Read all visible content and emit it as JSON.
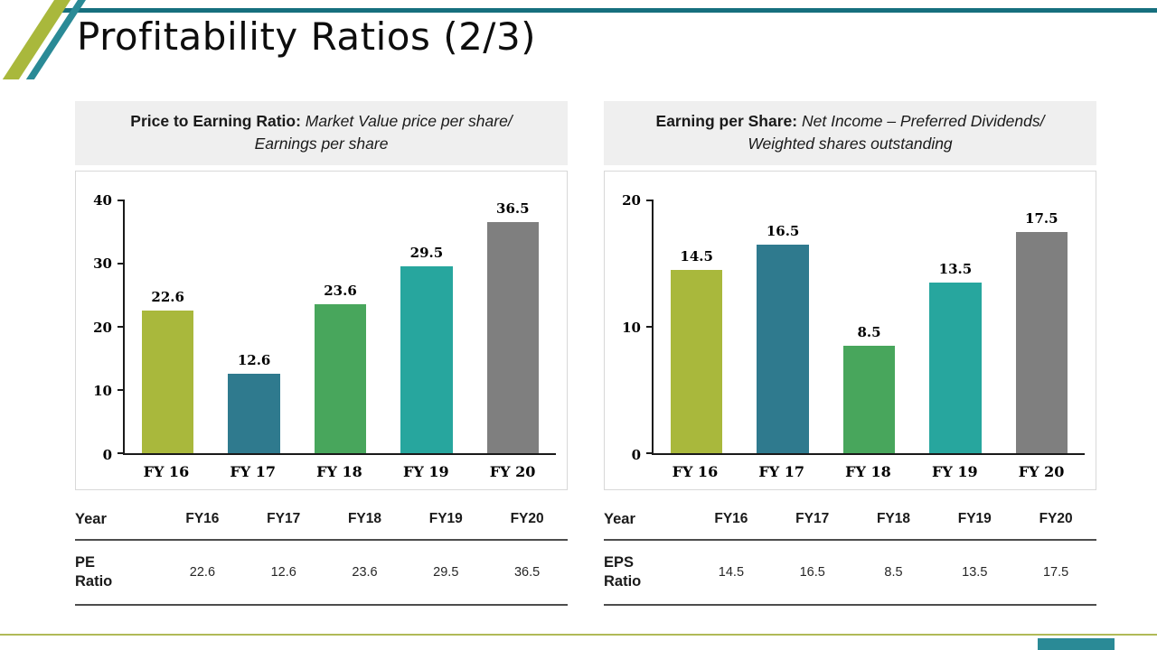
{
  "slide": {
    "title": "Profitability Ratios (2/3)"
  },
  "panels": [
    {
      "header": {
        "bold": "Price to Earning Ratio:",
        "italic": "Market Value price per share/ Earnings per share"
      },
      "table": {
        "header_label": "Year",
        "row_label": "PE Ratio",
        "columns": [
          "FY16",
          "FY17",
          "FY18",
          "FY19",
          "FY20"
        ],
        "values": [
          "22.6",
          "12.6",
          "23.6",
          "29.5",
          "36.5"
        ]
      }
    },
    {
      "header": {
        "bold": "Earning per Share:",
        "italic": "Net Income – Preferred Dividends/ Weighted shares outstanding"
      },
      "table": {
        "header_label": "Year",
        "row_label": "EPS Ratio",
        "columns": [
          "FY16",
          "FY17",
          "FY18",
          "FY19",
          "FY20"
        ],
        "values": [
          "14.5",
          "16.5",
          "8.5",
          "13.5",
          "17.5"
        ]
      }
    }
  ],
  "chart_data": [
    {
      "type": "bar",
      "title": "Price to Earning Ratio: Market Value price per share/ Earnings per share",
      "categories": [
        "FY 16",
        "FY 17",
        "FY 18",
        "FY 19",
        "FY 20"
      ],
      "values": [
        22.6,
        12.6,
        23.6,
        29.5,
        36.5
      ],
      "value_labels": [
        "22.6",
        "12.6",
        "23.6",
        "29.5",
        "36.5"
      ],
      "bar_colors": [
        "#a9b83c",
        "#2f7a8e",
        "#48a65c",
        "#27a69e",
        "#7f7f7f"
      ],
      "xlabel": "",
      "ylabel": "",
      "ylim": [
        0,
        40
      ],
      "yticks": [
        0,
        10,
        20,
        30,
        40
      ],
      "grid": false,
      "legend": "none"
    },
    {
      "type": "bar",
      "title": "Earning per Share: Net Income – Preferred Dividends/ Weighted shares outstanding",
      "categories": [
        "FY 16",
        "FY 17",
        "FY 18",
        "FY 19",
        "FY 20"
      ],
      "values": [
        14.5,
        16.5,
        8.5,
        13.5,
        17.5
      ],
      "value_labels": [
        "14.5",
        "16.5",
        "8.5",
        "13.5",
        "17.5"
      ],
      "bar_colors": [
        "#a9b83c",
        "#2f7a8e",
        "#48a65c",
        "#27a69e",
        "#7f7f7f"
      ],
      "xlabel": "",
      "ylabel": "",
      "ylim": [
        0,
        20
      ],
      "yticks": [
        0,
        10,
        20
      ],
      "grid": false,
      "legend": "none"
    }
  ],
  "accents": {
    "top_line": "#166f7e",
    "olive": "#a9b83c",
    "teal": "#2a8a96"
  }
}
